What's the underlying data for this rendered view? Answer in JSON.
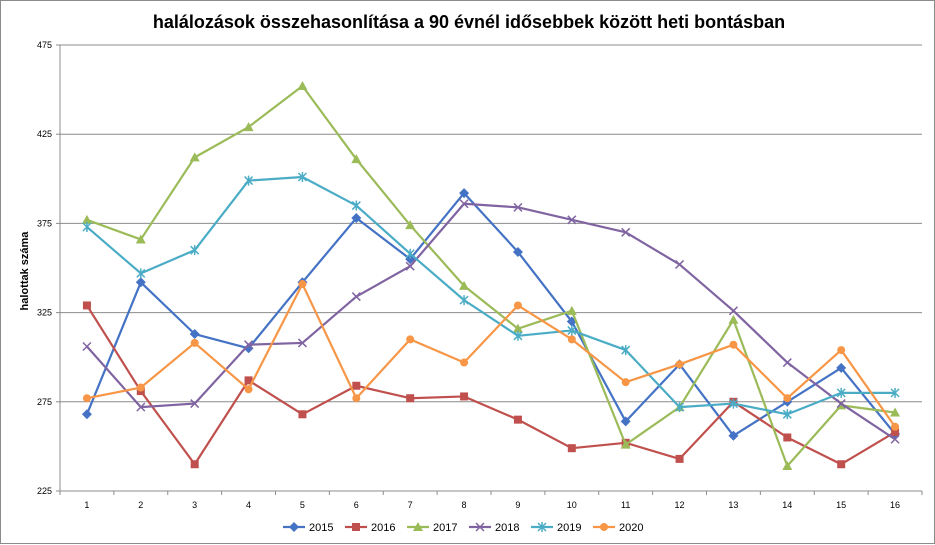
{
  "chart_data": {
    "type": "line",
    "title": "halálozások összehasonlítása a 90 évnél idősebbek között heti bontásban",
    "xlabel": "",
    "ylabel": "halottak száma",
    "ylim": [
      225,
      475
    ],
    "yticks": [
      225,
      275,
      325,
      375,
      425,
      475
    ],
    "categories": [
      "1",
      "2",
      "3",
      "4",
      "5",
      "6",
      "7",
      "8",
      "9",
      "10",
      "11",
      "12",
      "13",
      "14",
      "15",
      "16"
    ],
    "grid": true,
    "legend_position": "bottom",
    "series": [
      {
        "name": "2015",
        "color": "#4472C4",
        "marker": "diamond",
        "values": [
          268,
          342,
          313,
          305,
          342,
          378,
          355,
          392,
          359,
          320,
          264,
          296,
          256,
          275,
          294,
          257
        ]
      },
      {
        "name": "2016",
        "color": "#C0504D",
        "marker": "square",
        "values": [
          329,
          281,
          240,
          287,
          268,
          284,
          277,
          278,
          265,
          249,
          252,
          243,
          275,
          255,
          240,
          258
        ]
      },
      {
        "name": "2017",
        "color": "#9BBB59",
        "marker": "triangle",
        "values": [
          377,
          366,
          412,
          429,
          452,
          411,
          374,
          340,
          316,
          326,
          251,
          272,
          321,
          239,
          273,
          269
        ]
      },
      {
        "name": "2018",
        "color": "#8064A2",
        "marker": "x",
        "values": [
          306,
          272,
          274,
          307,
          308,
          334,
          351,
          386,
          384,
          377,
          370,
          352,
          326,
          297,
          274,
          254
        ]
      },
      {
        "name": "2019",
        "color": "#4BACC6",
        "marker": "star",
        "values": [
          373,
          347,
          360,
          399,
          401,
          385,
          358,
          332,
          312,
          315,
          304,
          272,
          274,
          268,
          280,
          280
        ]
      },
      {
        "name": "2020",
        "color": "#F79646",
        "marker": "circle",
        "values": [
          277,
          283,
          308,
          282,
          341,
          277,
          310,
          297,
          329,
          310,
          286,
          296,
          307,
          277,
          304,
          261
        ]
      }
    ]
  }
}
